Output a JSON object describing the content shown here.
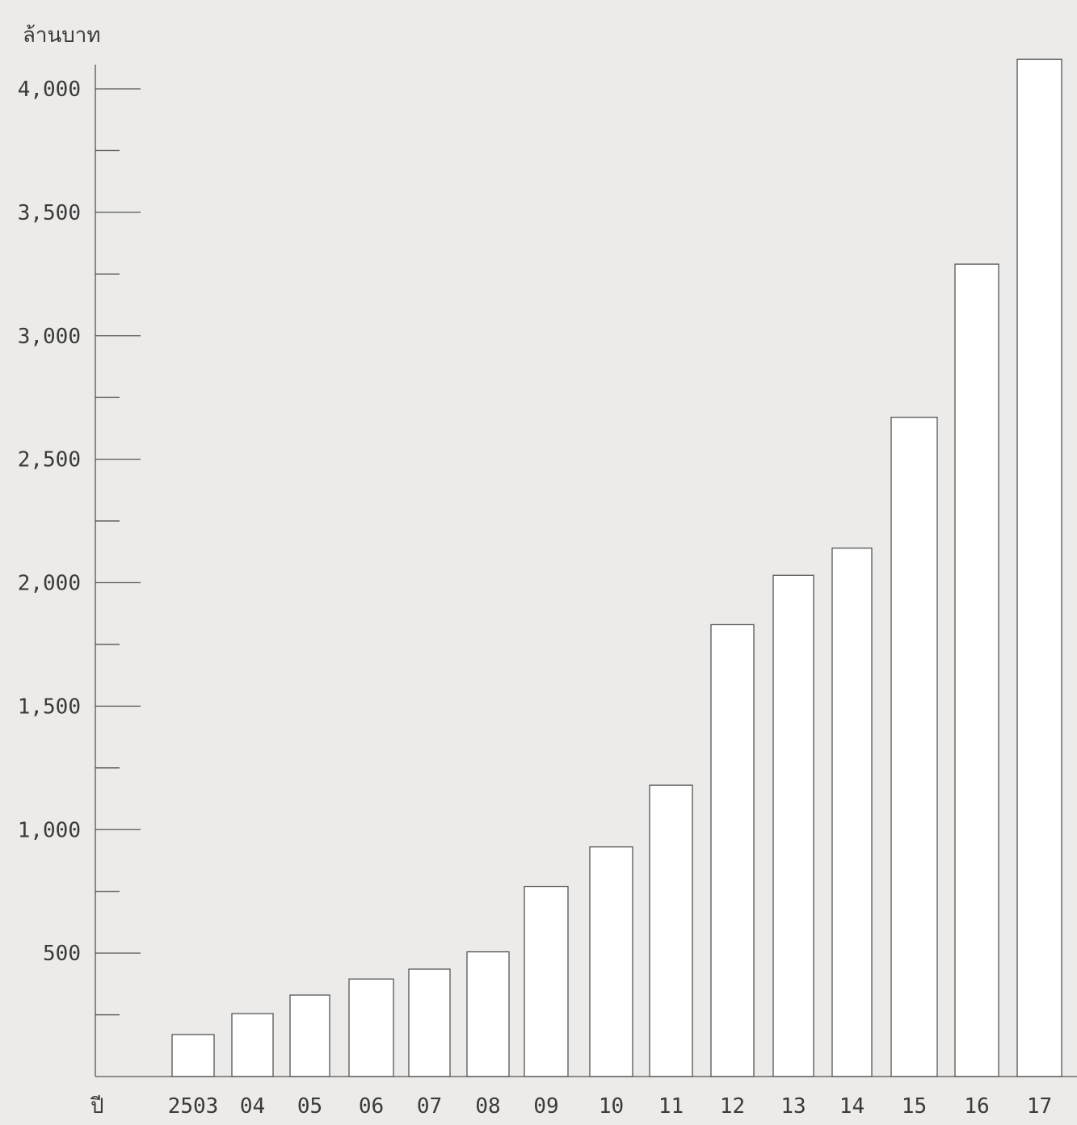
{
  "chart_data": {
    "type": "bar",
    "ylabel": "ล้านบาท",
    "xlabel": "ปี",
    "categories": [
      "2503",
      "04",
      "05",
      "06",
      "07",
      "08",
      "09",
      "10",
      "11",
      "12",
      "13",
      "14",
      "15",
      "16",
      "17"
    ],
    "values": [
      170,
      255,
      330,
      395,
      435,
      505,
      770,
      930,
      1180,
      1830,
      2030,
      2140,
      2670,
      3290,
      4120
    ],
    "ylim": [
      0,
      4100
    ],
    "yticks": [
      {
        "value": 500,
        "label": "500"
      },
      {
        "value": 1000,
        "label": "1,000"
      },
      {
        "value": 1500,
        "label": "1,500"
      },
      {
        "value": 2000,
        "label": "2,000"
      },
      {
        "value": 2500,
        "label": "2,500"
      },
      {
        "value": 3000,
        "label": "3,000"
      },
      {
        "value": 3500,
        "label": "3,500"
      },
      {
        "value": 4000,
        "label": "4,000"
      }
    ],
    "minor_yticks": [
      250,
      750,
      1250,
      1750,
      2250,
      2750,
      3250,
      3750
    ],
    "grid": false,
    "legend": "none",
    "colors": {
      "bar_fill": "#ffffff",
      "bar_stroke": "#555555",
      "axis": "#555555",
      "background": "#ecebe9"
    }
  }
}
